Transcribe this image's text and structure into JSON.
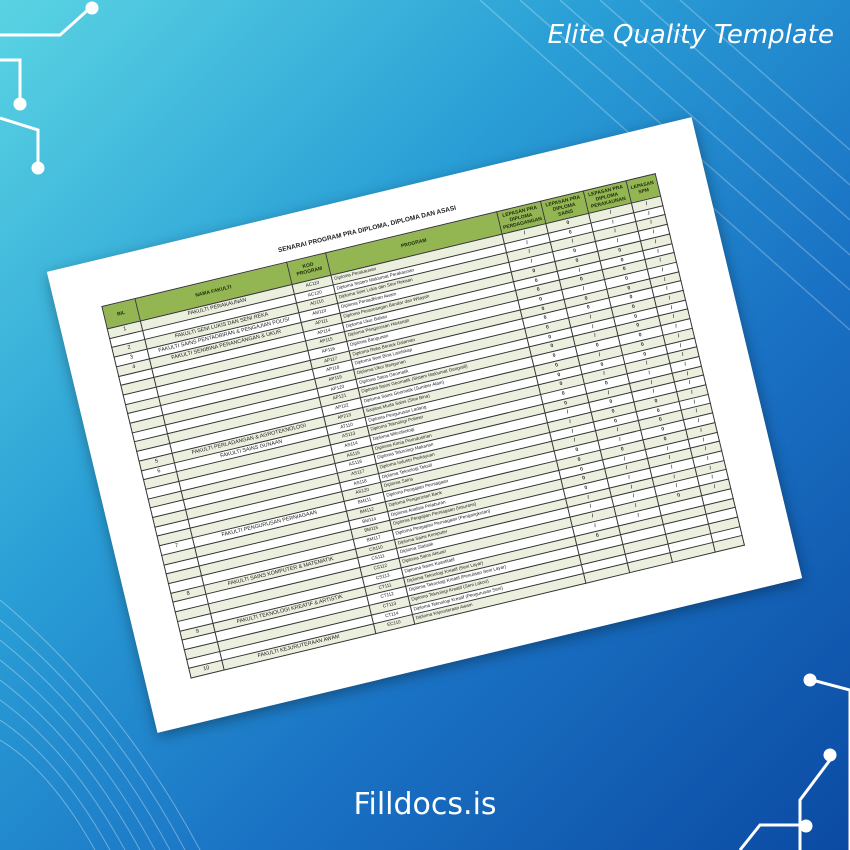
{
  "tagline": "Elite Quality Template",
  "brand": "Filldocs.is",
  "colors": {
    "header_green": "#93b653",
    "row_alt": "#ebf0de",
    "bg_start": "#5ad4e3",
    "bg_end": "#0b4aa3"
  },
  "document": {
    "title": "SENARAI PROGRAM PRA DIPLOMA, DIPLOMA DAN ASASI",
    "headers": [
      "BIL",
      "NAMA FAKULTI",
      "KOD PROGRAM",
      "PROGRAM",
      "LEPASAN PRA DIPLOMA PERDAGANGAN",
      "LEPASAN PRA DIPLOMA SAINS",
      "LEPASAN PRA DIPLOMA PERAKAUNAN",
      "LEPASAN SPM"
    ],
    "rows": [
      {
        "bil": "1",
        "faculty": "FAKULTI PERAKAUNAN",
        "code": "AC110",
        "program": "Diploma Perakaunan",
        "marks": [
          "/",
          "0",
          "/",
          "/"
        ]
      },
      {
        "bil": "",
        "faculty": "",
        "code": "AC120",
        "program": "Diploma Sistem Maklumat Perakaunan",
        "marks": [
          "/",
          "0",
          "/",
          "/"
        ]
      },
      {
        "bil": "2",
        "faculty": "FAKULTI SENI LUKIS DAN SENI REKA",
        "code": "AD110",
        "program": "Diploma Seni Lukis dan Seni Rekaan",
        "marks": [
          "/",
          "/",
          "/",
          "/"
        ]
      },
      {
        "bil": "3",
        "faculty": "FAKULTI SAINS PENTADBIRAN & PENGAJIAN POLISI",
        "code": "AM110",
        "program": "Diploma Pentadbiran Awam",
        "marks": [
          "/",
          "0",
          "/",
          "/"
        ]
      },
      {
        "bil": "4",
        "faculty": "FAKULTI SENIBINA PERANCANGAN & UKUR",
        "code": "AP111",
        "program": "Diploma Perancangan Bandar dan Wilayah",
        "marks": [
          "0",
          "0",
          "0",
          "/"
        ]
      },
      {
        "bil": "",
        "faculty": "",
        "code": "AP114",
        "program": "Diploma Ukur Bahan",
        "marks": [
          "0",
          "/",
          "0",
          "/"
        ]
      },
      {
        "bil": "",
        "faculty": "",
        "code": "AP115",
        "program": "Diploma Pengurusan Hartanah",
        "marks": [
          "0",
          "0",
          "0",
          "/"
        ]
      },
      {
        "bil": "",
        "faculty": "",
        "code": "AP116",
        "program": "Diploma Bangunan",
        "marks": [
          "0",
          "/",
          "0",
          "/"
        ]
      },
      {
        "bil": "",
        "faculty": "",
        "code": "AP117",
        "program": "Diploma Reka Bentuk Dalaman",
        "marks": [
          "0",
          "0",
          "0",
          "/"
        ]
      },
      {
        "bil": "",
        "faculty": "",
        "code": "AP118",
        "program": "Diploma Seni Bina Landskap",
        "marks": [
          "0",
          "0",
          "0",
          "/"
        ]
      },
      {
        "bil": "",
        "faculty": "",
        "code": "AP119",
        "program": "Diploma Ukur Bangunan",
        "marks": [
          "0",
          "/",
          "0",
          "/"
        ]
      },
      {
        "bil": "",
        "faculty": "",
        "code": "AP120",
        "program": "Diploma Sains Geomatik",
        "marks": [
          "0",
          "/",
          "0",
          "/"
        ]
      },
      {
        "bil": "",
        "faculty": "",
        "code": "AP121",
        "program": "Diploma Sains Geomatik (Sistem Maklumat Geografi)",
        "marks": [
          "0",
          "/",
          "0",
          "/"
        ]
      },
      {
        "bil": "",
        "faculty": "",
        "code": "AP122",
        "program": "Diploma Sains Geomatik (Sumber Alam)",
        "marks": [
          "0",
          "0",
          "0",
          "/"
        ]
      },
      {
        "bil": "5",
        "faculty": "FAKULTI PERLADANGAN & AGROTEKNOLOGI",
        "code": "AP213",
        "program": "Sarjana Muda Sains (Seni Bina)",
        "marks": [
          "0",
          "/",
          "0",
          "/"
        ]
      },
      {
        "bil": "6",
        "faculty": "FAKULTI SAINS GUNAAN",
        "code": "AT110",
        "program": "Diploma Pengurusan Ladang",
        "marks": [
          "0",
          "0",
          "0",
          "/"
        ]
      },
      {
        "bil": "",
        "faculty": "",
        "code": "AS113",
        "program": "Diploma Teknologi Polimer",
        "marks": [
          "0",
          "/",
          "/",
          "/"
        ]
      },
      {
        "bil": "",
        "faculty": "",
        "code": "AS114",
        "program": "Diploma Mikrobiologi",
        "marks": [
          "0",
          "0",
          "/",
          "/"
        ]
      },
      {
        "bil": "",
        "faculty": "",
        "code": "AS115",
        "program": "Diploma Kimia Perindustrian",
        "marks": [
          "0",
          "/",
          "/",
          "/"
        ]
      },
      {
        "bil": "",
        "faculty": "",
        "code": "AS116",
        "program": "Diploma Teknologi Makanan",
        "marks": [
          "/",
          "0",
          "/",
          "/"
        ]
      },
      {
        "bil": "",
        "faculty": "",
        "code": "AS117",
        "program": "Diploma Industri Perkayuan",
        "marks": [
          "/",
          "0",
          "0",
          "/"
        ]
      },
      {
        "bil": "",
        "faculty": "",
        "code": "AS118",
        "program": "Diploma Teknologi Tekstil",
        "marks": [
          "/",
          "0",
          "0",
          "/"
        ]
      },
      {
        "bil": "",
        "faculty": "",
        "code": "AS120",
        "program": "Diploma Sains",
        "marks": [
          "/",
          "/",
          "0",
          "/"
        ]
      },
      {
        "bil": "7",
        "faculty": "FAKULTI PENGURUSAN PERNIAGAAN",
        "code": "BM111",
        "program": "Diploma Pengajian Perniagaan",
        "marks": [
          "0",
          "/",
          "0",
          "/"
        ]
      },
      {
        "bil": "",
        "faculty": "",
        "code": "BM112",
        "program": "Diploma Pengurusan Bank",
        "marks": [
          "0",
          "0",
          "0",
          "/"
        ]
      },
      {
        "bil": "",
        "faculty": "",
        "code": "BM114",
        "program": "Diploma Analisis Pelaburan",
        "marks": [
          "0",
          "/",
          "/",
          "/"
        ]
      },
      {
        "bil": "",
        "faculty": "",
        "code": "BM115",
        "program": "Diploma Pengajian Perniagaan (Insurans)",
        "marks": [
          "0",
          "/",
          "/",
          "/"
        ]
      },
      {
        "bil": "",
        "faculty": "",
        "code": "BM117",
        "program": "Diploma Pengajian Perniagaan (Pengangkutan)",
        "marks": [
          "0",
          "/",
          "/",
          "/"
        ]
      },
      {
        "bil": "8",
        "faculty": "FAKULTI SAINS KOMPUTER & MATEMATIK",
        "code": "CS110",
        "program": "Diploma Sains Komputer",
        "marks": [
          "/",
          "/",
          "/",
          "/"
        ]
      },
      {
        "bil": "",
        "faculty": "",
        "code": "CS111",
        "program": "Diploma Statistik",
        "marks": [
          "/",
          "/",
          "/",
          "/"
        ]
      },
      {
        "bil": "",
        "faculty": "",
        "code": "CS112",
        "program": "Diploma Sains Aktuari",
        "marks": [
          "/",
          "/",
          "0",
          "/"
        ]
      },
      {
        "bil": "",
        "faculty": "",
        "code": "CS113",
        "program": "Diploma Sains Kuantitatif",
        "marks": [
          "/",
          "/",
          "",
          ""
        ]
      },
      {
        "bil": "9",
        "faculty": "FAKULTI TEKNOLOGI KREATIF & ARTISTIK",
        "code": "CT111",
        "program": "Diploma Teknologi Kreatif (Seni Layar)",
        "marks": [
          "0",
          "",
          "",
          ""
        ]
      },
      {
        "bil": "",
        "faculty": "",
        "code": "CT112",
        "program": "Diploma Teknologi Kreatif (Penulisan Seni Layar)",
        "marks": [
          "",
          "",
          "",
          ""
        ]
      },
      {
        "bil": "",
        "faculty": "",
        "code": "CT113",
        "program": "Diploma Teknologi Kreatif (Seni Lakon)",
        "marks": [
          "",
          "",
          "",
          ""
        ]
      },
      {
        "bil": "",
        "faculty": "",
        "code": "CT114",
        "program": "Diploma Teknologi Kreatif (Pengurusan Seni)",
        "marks": [
          "",
          "",
          "",
          ""
        ]
      },
      {
        "bil": "10",
        "faculty": "FAKULTI KEJURUTERAAN AWAM",
        "code": "EC110",
        "program": "Diploma Kejuruteraan Awam",
        "marks": [
          "",
          "",
          "",
          ""
        ]
      }
    ]
  }
}
